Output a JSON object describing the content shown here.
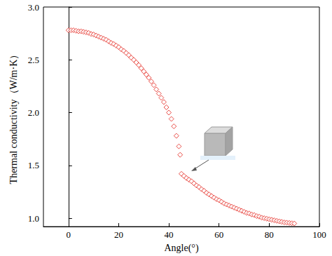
{
  "chart_data": {
    "type": "scatter",
    "x_label": "Angle(°)",
    "y_label": "Thermal conductivity（W/m·K）",
    "x": [
      0,
      1,
      2,
      3,
      4,
      5,
      6,
      7,
      8,
      9,
      10,
      11,
      12,
      13,
      14,
      15,
      16,
      17,
      18,
      19,
      20,
      21,
      22,
      23,
      24,
      25,
      26,
      27,
      28,
      29,
      30,
      31,
      32,
      33,
      34,
      35,
      36,
      37,
      38,
      39,
      40,
      41,
      42,
      43,
      44,
      44.5,
      45,
      46,
      47,
      48,
      49,
      50,
      51,
      52,
      53,
      54,
      55,
      56,
      57,
      58,
      59,
      60,
      61,
      62,
      63,
      64,
      65,
      66,
      67,
      68,
      69,
      70,
      71,
      72,
      73,
      74,
      75,
      76,
      77,
      78,
      79,
      80,
      81,
      82,
      83,
      84,
      85,
      86,
      87,
      88,
      89,
      90
    ],
    "values": [
      2.78,
      2.78,
      2.78,
      2.775,
      2.77,
      2.77,
      2.765,
      2.76,
      2.755,
      2.745,
      2.74,
      2.73,
      2.72,
      2.71,
      2.7,
      2.69,
      2.675,
      2.66,
      2.65,
      2.635,
      2.62,
      2.6,
      2.585,
      2.565,
      2.545,
      2.52,
      2.5,
      2.475,
      2.45,
      2.42,
      2.39,
      2.36,
      2.33,
      2.295,
      2.26,
      2.22,
      2.18,
      2.14,
      2.1,
      2.05,
      2.0,
      1.94,
      1.87,
      1.78,
      1.68,
      1.6,
      1.42,
      1.4,
      1.38,
      1.365,
      1.35,
      1.33,
      1.31,
      1.295,
      1.275,
      1.26,
      1.24,
      1.225,
      1.21,
      1.195,
      1.18,
      1.17,
      1.155,
      1.14,
      1.13,
      1.12,
      1.11,
      1.1,
      1.09,
      1.08,
      1.07,
      1.06,
      1.05,
      1.045,
      1.035,
      1.03,
      1.02,
      1.015,
      1.005,
      1.0,
      0.995,
      0.99,
      0.985,
      0.98,
      0.975,
      0.97,
      0.965,
      0.96,
      0.958,
      0.955,
      0.952,
      0.95
    ],
    "color": "#e3231c",
    "marker": "diamond",
    "xlim": [
      -10,
      100
    ],
    "xticks": [
      0,
      20,
      40,
      60,
      80,
      100
    ],
    "ylim": [
      0.92,
      3.0
    ],
    "yticks": [
      {
        "value": 1,
        "label": "1.0"
      },
      {
        "value": 1.5,
        "label": "1.5"
      },
      {
        "value": 2,
        "label": "2.0"
      },
      {
        "value": 2.5,
        "label": "2.5"
      },
      {
        "value": 3,
        "label": "3.0"
      }
    ],
    "grid": false
  }
}
